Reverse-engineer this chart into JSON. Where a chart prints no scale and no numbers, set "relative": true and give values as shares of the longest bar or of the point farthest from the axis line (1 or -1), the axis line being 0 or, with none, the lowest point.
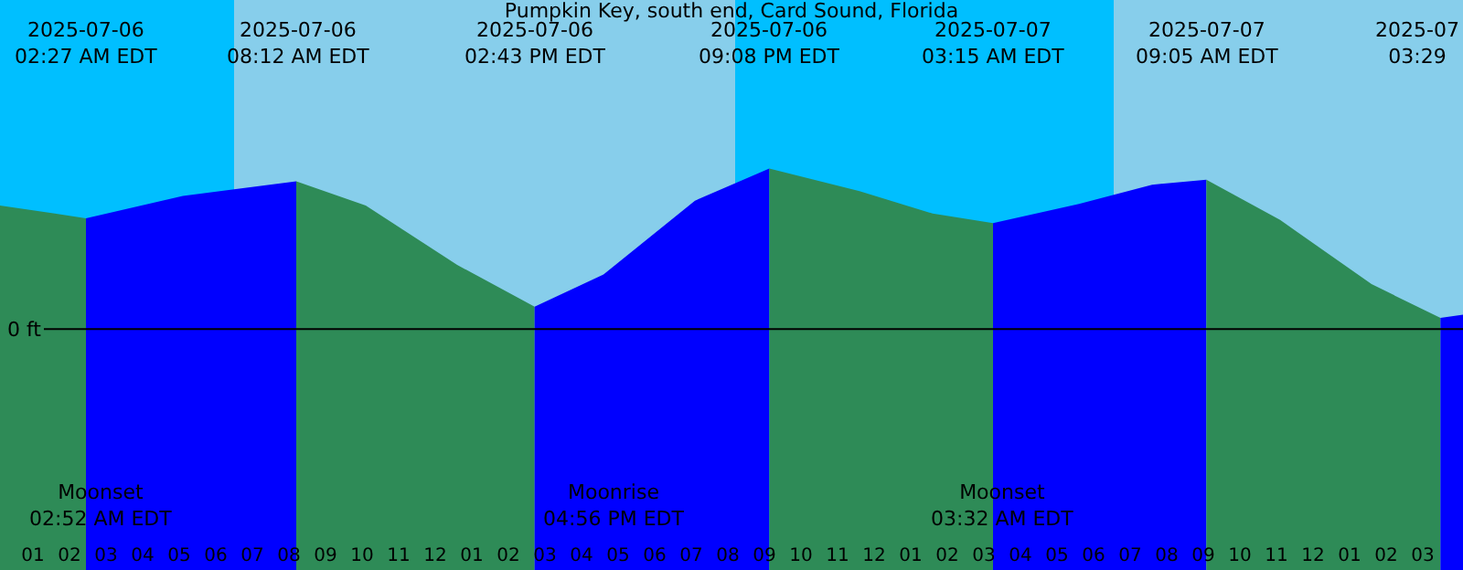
{
  "chart_data": {
    "type": "area",
    "title": "Pumpkin Key, south end, Card Sound, Florida",
    "relative": true,
    "xlim": [
      "2025-07-06T00:06",
      "2025-07-07T16:06"
    ],
    "xticks": [
      {
        "value": "2025-07-06T01:00",
        "label": "01"
      },
      {
        "value": "2025-07-06T02:00",
        "label": "02"
      },
      {
        "value": "2025-07-06T03:00",
        "label": "03"
      },
      {
        "value": "2025-07-06T04:00",
        "label": "04"
      },
      {
        "value": "2025-07-06T05:00",
        "label": "05"
      },
      {
        "value": "2025-07-06T06:00",
        "label": "06"
      },
      {
        "value": "2025-07-06T07:00",
        "label": "07"
      },
      {
        "value": "2025-07-06T08:00",
        "label": "08"
      },
      {
        "value": "2025-07-06T09:00",
        "label": "09"
      },
      {
        "value": "2025-07-06T10:00",
        "label": "10"
      },
      {
        "value": "2025-07-06T11:00",
        "label": "11"
      },
      {
        "value": "2025-07-06T12:00",
        "label": "12"
      },
      {
        "value": "2025-07-06T13:00",
        "label": "01"
      },
      {
        "value": "2025-07-06T14:00",
        "label": "02"
      },
      {
        "value": "2025-07-06T15:00",
        "label": "03"
      },
      {
        "value": "2025-07-06T16:00",
        "label": "04"
      },
      {
        "value": "2025-07-06T17:00",
        "label": "05"
      },
      {
        "value": "2025-07-06T18:00",
        "label": "06"
      },
      {
        "value": "2025-07-06T19:00",
        "label": "07"
      },
      {
        "value": "2025-07-06T20:00",
        "label": "08"
      },
      {
        "value": "2025-07-06T21:00",
        "label": "09"
      },
      {
        "value": "2025-07-06T22:00",
        "label": "10"
      },
      {
        "value": "2025-07-06T23:00",
        "label": "11"
      },
      {
        "value": "2025-07-07T00:00",
        "label": "12"
      },
      {
        "value": "2025-07-07T01:00",
        "label": "01"
      },
      {
        "value": "2025-07-07T02:00",
        "label": "02"
      },
      {
        "value": "2025-07-07T03:00",
        "label": "03"
      },
      {
        "value": "2025-07-07T04:00",
        "label": "04"
      },
      {
        "value": "2025-07-07T05:00",
        "label": "05"
      },
      {
        "value": "2025-07-07T06:00",
        "label": "06"
      },
      {
        "value": "2025-07-07T07:00",
        "label": "07"
      },
      {
        "value": "2025-07-07T08:00",
        "label": "08"
      },
      {
        "value": "2025-07-07T09:00",
        "label": "09"
      },
      {
        "value": "2025-07-07T10:00",
        "label": "10"
      },
      {
        "value": "2025-07-07T11:00",
        "label": "11"
      },
      {
        "value": "2025-07-07T12:00",
        "label": "12"
      },
      {
        "value": "2025-07-07T13:00",
        "label": "01"
      },
      {
        "value": "2025-07-07T14:00",
        "label": "02"
      },
      {
        "value": "2025-07-07T15:00",
        "label": "03"
      }
    ],
    "series": [
      {
        "color": "#2e8b57",
        "x": [
          "2025-07-06T00:06",
          "2025-07-06T01:36",
          "2025-07-06T02:27"
        ],
        "values": [
          0.77,
          0.72,
          0.69
        ]
      },
      {
        "color": "#0000ff",
        "x": [
          "2025-07-06T02:27",
          "2025-07-06T05:06",
          "2025-07-06T08:12"
        ],
        "values": [
          0.69,
          0.83,
          0.92
        ]
      },
      {
        "color": "#2e8b57",
        "x": [
          "2025-07-06T08:12",
          "2025-07-06T10:06",
          "2025-07-06T12:36",
          "2025-07-06T14:43"
        ],
        "values": [
          0.92,
          0.77,
          0.4,
          0.14
        ]
      },
      {
        "color": "#0000ff",
        "x": [
          "2025-07-06T14:43",
          "2025-07-06T16:36",
          "2025-07-06T19:06",
          "2025-07-06T21:08"
        ],
        "values": [
          0.14,
          0.34,
          0.8,
          1.0
        ]
      },
      {
        "color": "#2e8b57",
        "x": [
          "2025-07-06T21:08",
          "2025-07-06T23:36",
          "2025-07-07T01:36",
          "2025-07-07T03:15"
        ],
        "values": [
          1.0,
          0.86,
          0.72,
          0.66
        ]
      },
      {
        "color": "#0000ff",
        "x": [
          "2025-07-07T03:15",
          "2025-07-07T05:36",
          "2025-07-07T07:36",
          "2025-07-07T09:05"
        ],
        "values": [
          0.66,
          0.78,
          0.9,
          0.93
        ]
      },
      {
        "color": "#2e8b57",
        "x": [
          "2025-07-07T09:05",
          "2025-07-07T11:06",
          "2025-07-07T13:36",
          "2025-07-07T15:29"
        ],
        "values": [
          0.93,
          0.68,
          0.28,
          0.07
        ]
      },
      {
        "color": "#0000ff",
        "x": [
          "2025-07-07T15:29",
          "2025-07-07T16:06"
        ],
        "values": [
          0.07,
          0.09
        ]
      }
    ],
    "bands": [
      {
        "axis": "x",
        "from": "2025-07-06T00:06",
        "to": "2025-07-06T06:30",
        "color": "#00bfff"
      },
      {
        "axis": "x",
        "from": "2025-07-06T06:30",
        "to": "2025-07-06T20:12",
        "color": "#87ceeb"
      },
      {
        "axis": "x",
        "from": "2025-07-06T20:12",
        "to": "2025-07-07T06:33",
        "color": "#00bfff"
      },
      {
        "axis": "x",
        "from": "2025-07-07T06:33",
        "to": "2025-07-07T16:06",
        "color": "#87ceeb"
      }
    ],
    "ref_lines": [
      {
        "axis": "y",
        "value": 0,
        "label": "0 ft",
        "color": "#000000"
      }
    ],
    "annotations": [
      "2025-07-06\n02:27 AM EDT",
      "2025-07-06\n08:12 AM EDT",
      "2025-07-06\n02:43 PM EDT",
      "2025-07-06\n09:08 PM EDT",
      "2025-07-07\n03:15 AM EDT",
      "2025-07-07\n09:05 AM EDT",
      "2025-07\n03:29",
      "Moonset\n02:52 AM EDT",
      "Moonrise\n04:56 PM EDT",
      "Moonset\n03:32 AM EDT"
    ],
    "grid": false
  }
}
